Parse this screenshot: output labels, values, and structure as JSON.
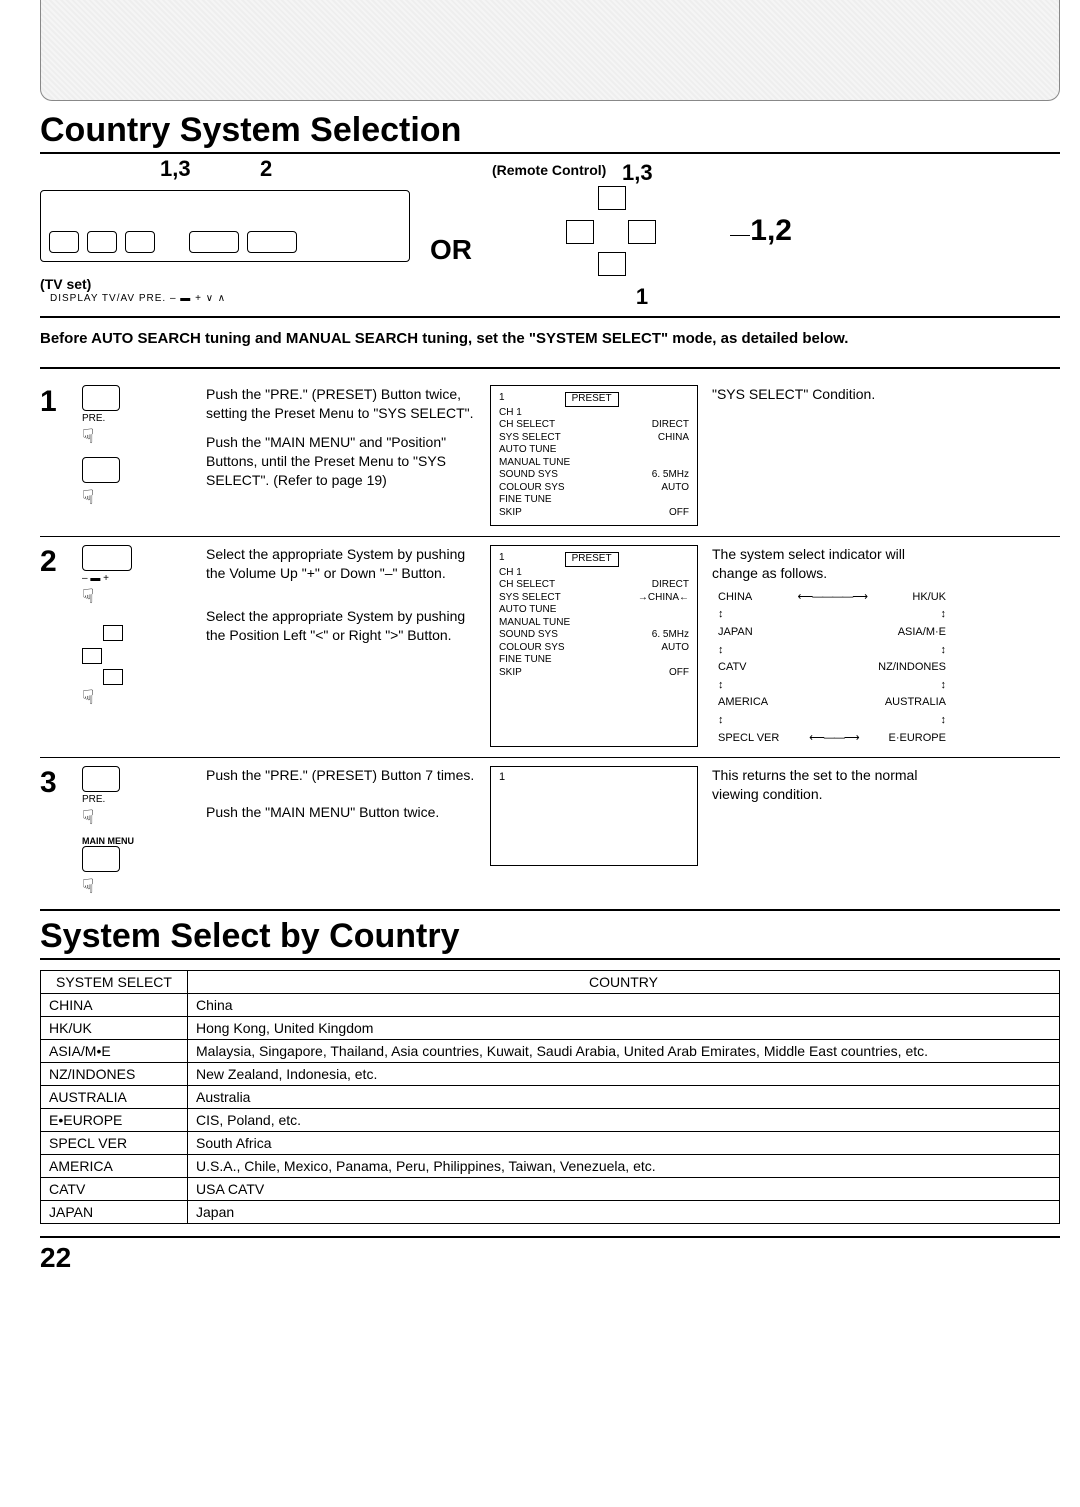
{
  "heading1": "Country System Selection",
  "heading2": "System Select by Country",
  "page_number": "22",
  "tv": {
    "num_left": "1,3",
    "num_right": "2",
    "labels": "DISPLAY  TV/AV     PRE.          –  ▬  +           ∨       ∧",
    "caption": "(TV set)",
    "or": "OR"
  },
  "remote": {
    "title": "(Remote Control)",
    "num_top": "1,3",
    "num_right": "1,2",
    "num_bottom": "1"
  },
  "intro": "Before AUTO SEARCH tuning and MANUAL SEARCH tuning, set the \"SYSTEM SELECT\" mode, as detailed below.",
  "steps": [
    {
      "num": "1",
      "icon_label": "PRE.",
      "text1": "Push the \"PRE.\" (PRESET) Button twice, setting the Preset Menu to \"SYS SELECT\".",
      "text2": "Push the \"MAIN MENU\" and \"Position\" Buttons, until the Preset Menu to \"SYS SELECT\". (Refer to page 19)",
      "panel": {
        "hdr": "PRESET",
        "n": "1",
        "ch": "CH 1",
        "rows": [
          [
            "CH SELECT",
            "DIRECT"
          ],
          [
            "SYS SELECT",
            "CHINA"
          ],
          [
            "AUTO TUNE",
            ""
          ],
          [
            "MANUAL TUNE",
            ""
          ],
          [
            "SOUND SYS",
            "6. 5MHz"
          ],
          [
            "COLOUR SYS",
            "AUTO"
          ],
          [
            "FINE TUNE",
            ""
          ],
          [
            "SKIP",
            "OFF"
          ]
        ]
      },
      "note": "\"SYS SELECT\" Condition."
    },
    {
      "num": "2",
      "text1": "Select the appropriate System by pushing the Volume Up \"+\" or Down \"–\" Button.",
      "text2": "Select the appropriate System by pushing the Position Left \"<\" or Right \">\"  Button.",
      "panel": {
        "hdr": "PRESET",
        "n": "1",
        "ch": "CH 1",
        "rows": [
          [
            "CH SELECT",
            "DIRECT"
          ],
          [
            "SYS SELECT",
            "→CHINA←"
          ],
          [
            "AUTO TUNE",
            ""
          ],
          [
            "MANUAL TUNE",
            ""
          ],
          [
            "SOUND SYS",
            "6. 5MHz"
          ],
          [
            "COLOUR SYS",
            "AUTO"
          ],
          [
            "FINE TUNE",
            ""
          ],
          [
            "SKIP",
            "OFF"
          ]
        ]
      },
      "note_head": "The system select indicator will change as follows.",
      "cycle": [
        [
          "CHINA",
          "⟵————⟶",
          "HK/UK"
        ],
        [
          "↕",
          "",
          "↕"
        ],
        [
          "JAPAN",
          "",
          "ASIA/M·E"
        ],
        [
          "↕",
          "",
          "↕"
        ],
        [
          "CATV",
          "",
          "NZ/INDONES"
        ],
        [
          "↕",
          "",
          "↕"
        ],
        [
          "AMERICA",
          "",
          "AUSTRALIA"
        ],
        [
          "↕",
          "",
          "↕"
        ],
        [
          "SPECL VER",
          "⟵——⟶",
          "E·EUROPE"
        ]
      ]
    },
    {
      "num": "3",
      "icon_label": "PRE.",
      "mm_label": "MAIN MENU",
      "text1": "Push the \"PRE.\" (PRESET) Button 7 times.",
      "text2": "Push the \"MAIN MENU\" Button twice.",
      "panel_n": "1",
      "note": "This returns the set to the normal viewing condition."
    }
  ],
  "table": {
    "head": [
      "SYSTEM SELECT",
      "COUNTRY"
    ],
    "rows": [
      [
        "CHINA",
        "China"
      ],
      [
        "HK/UK",
        "Hong Kong, United Kingdom"
      ],
      [
        "ASIA/M•E",
        "Malaysia, Singapore, Thailand, Asia countries, Kuwait, Saudi Arabia, United Arab Emirates, Middle East countries, etc."
      ],
      [
        "NZ/INDONES",
        "New Zealand, Indonesia, etc."
      ],
      [
        "AUSTRALIA",
        "Australia"
      ],
      [
        "E•EUROPE",
        "CIS, Poland, etc."
      ],
      [
        "SPECL VER",
        "South Africa"
      ],
      [
        "AMERICA",
        "U.S.A., Chile, Mexico, Panama, Peru, Philippines, Taiwan, Venezuela, etc."
      ],
      [
        "CATV",
        "USA CATV"
      ],
      [
        "JAPAN",
        "Japan"
      ]
    ]
  }
}
